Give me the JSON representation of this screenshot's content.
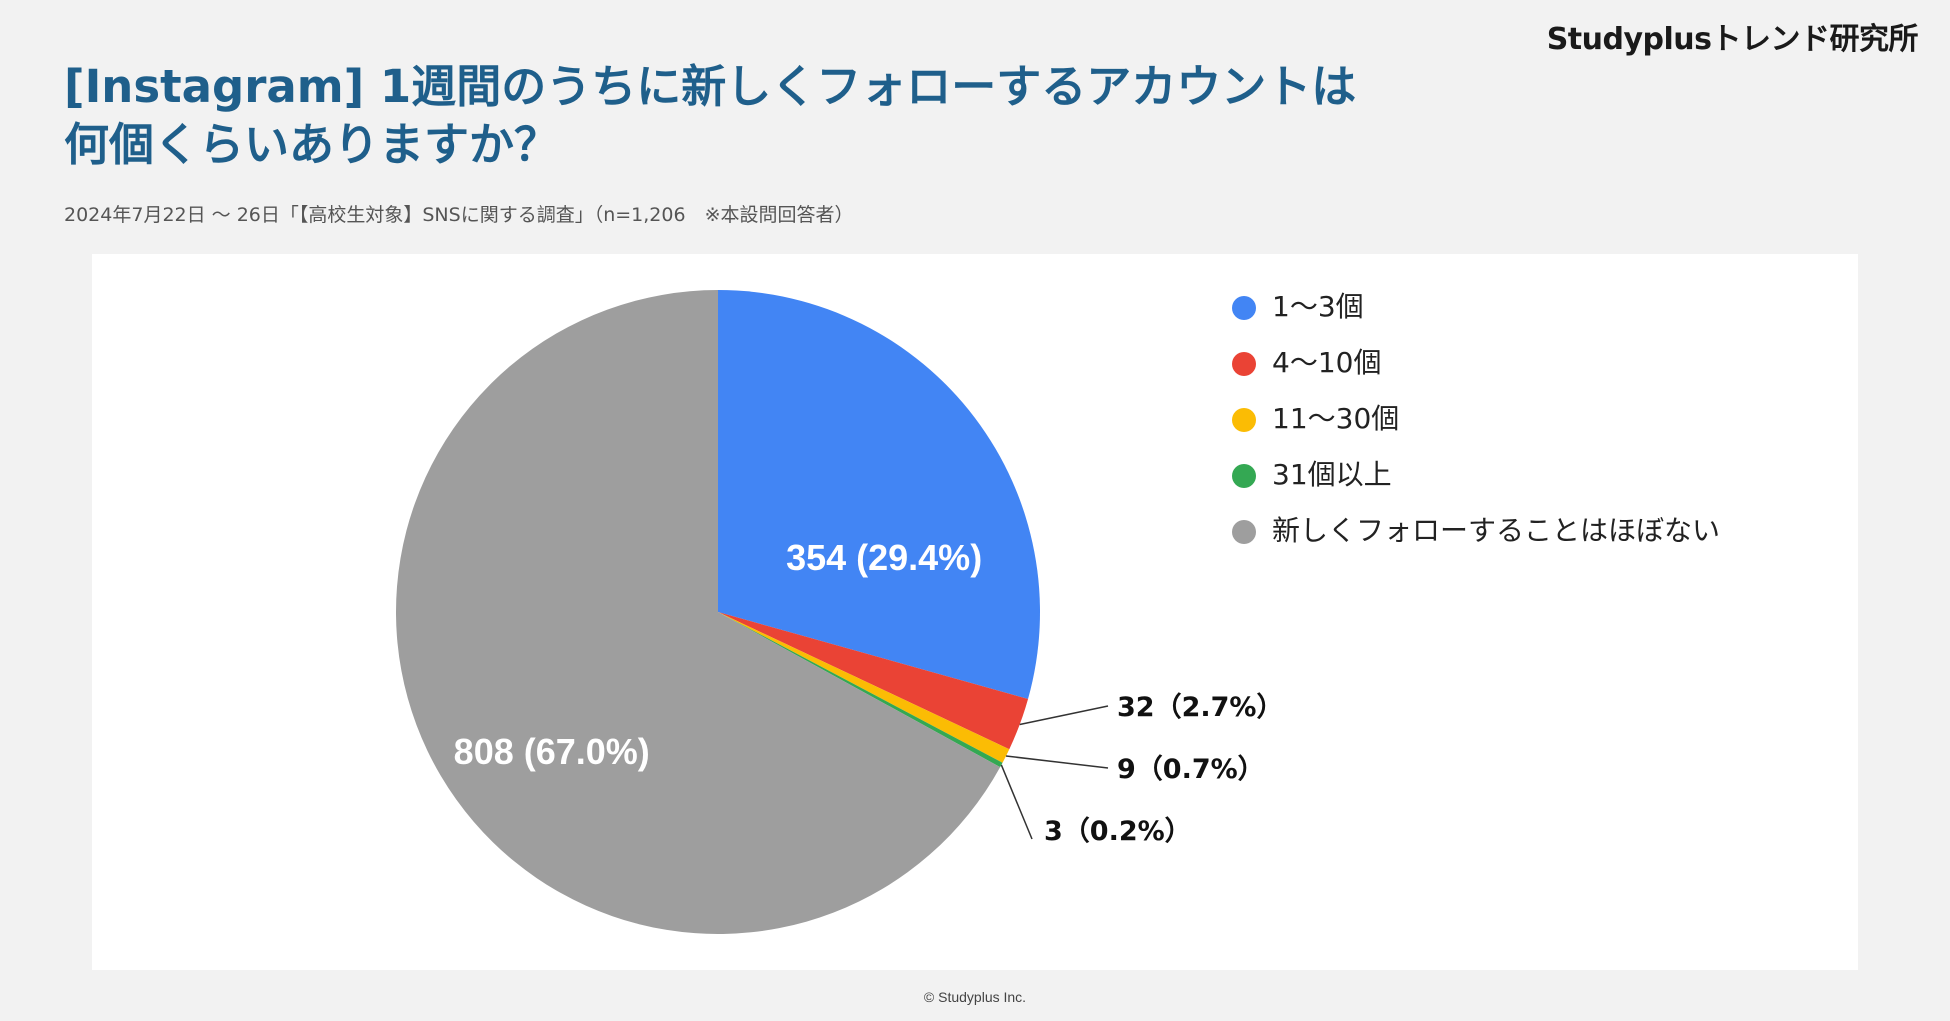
{
  "header": {
    "brand": "Studyplusトレンド研究所",
    "title_line1": "[Instagram] 1週間のうちに新しくフォローするアカウントは",
    "title_line2": "何個くらいありますか？",
    "subtitle": "2024年7月22日 〜 26日「【高校生対象】SNSに関する調査」（n=1,206　※本設問回答者）"
  },
  "footer": {
    "copyright": "© Studyplus Inc."
  },
  "chart_data": {
    "type": "pie",
    "title": "[Instagram] 1週間のうちに新しくフォローするアカウントは何個くらいありますか？",
    "n": 1206,
    "start_angle": "12 o'clock, clockwise",
    "legend_position": "right",
    "slices": [
      {
        "label": "1〜3個",
        "value": 354,
        "percent": 29.4,
        "color": "#4285f4",
        "data_label": "354 (29.4%)",
        "label_placement": "inside"
      },
      {
        "label": "4〜10個",
        "value": 32,
        "percent": 2.7,
        "color": "#ea4335",
        "data_label": "32（2.7%）",
        "label_placement": "outside"
      },
      {
        "label": "11〜30個",
        "value": 9,
        "percent": 0.7,
        "color": "#fbbc04",
        "data_label": "9（0.7%）",
        "label_placement": "outside"
      },
      {
        "label": "31個以上",
        "value": 3,
        "percent": 0.2,
        "color": "#34a853",
        "data_label": "3（0.2%）",
        "label_placement": "outside"
      },
      {
        "label": "新しくフォローすることはほぼない",
        "value": 808,
        "percent": 67.0,
        "color": "#9e9e9e",
        "data_label": "808 (67.0%)",
        "label_placement": "inside"
      }
    ]
  }
}
